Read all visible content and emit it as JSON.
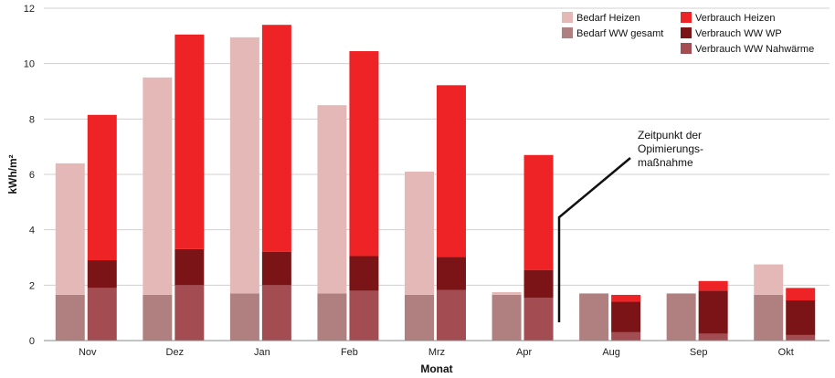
{
  "chart_data": {
    "type": "bar",
    "xlabel": "Monat",
    "ylabel": "kWh/m²",
    "ylim": [
      0,
      12
    ],
    "yticks": [
      0,
      2,
      4,
      6,
      8,
      10,
      12
    ],
    "grid": true,
    "legend_position": "top-right",
    "categories": [
      "Nov",
      "Dez",
      "Jan",
      "Feb",
      "Mrz",
      "Apr",
      "Aug",
      "Sep",
      "Okt"
    ],
    "stacks": [
      {
        "name": "Bedarf",
        "series": [
          {
            "name": "Bedarf WW gesamt",
            "color": "#b07f7f",
            "values": [
              1.65,
              1.65,
              1.7,
              1.7,
              1.65,
              1.65,
              1.7,
              1.7,
              1.65
            ]
          },
          {
            "name": "Bedarf Heizen",
            "color": "#e5b8b8",
            "values": [
              4.75,
              7.85,
              9.25,
              6.8,
              4.45,
              0.1,
              0,
              0,
              1.1
            ]
          }
        ]
      },
      {
        "name": "Verbrauch",
        "series": [
          {
            "name": "Verbrauch WW Nahwärme",
            "color": "#a34d52",
            "values": [
              1.9,
              2.0,
              2.0,
              1.8,
              1.82,
              1.55,
              0.3,
              0.25,
              0.2
            ]
          },
          {
            "name": "Verbrauch WW WP",
            "color": "#7a1416",
            "values": [
              1.0,
              1.3,
              1.2,
              1.25,
              1.2,
              1.0,
              1.1,
              1.55,
              1.25
            ]
          },
          {
            "name": "Verbrauch Heizen",
            "color": "#ee2326",
            "values": [
              5.25,
              7.75,
              8.2,
              7.4,
              6.2,
              4.15,
              0.25,
              0.35,
              0.45
            ]
          }
        ]
      }
    ],
    "legend": {
      "col1": [
        "Bedarf Heizen",
        "Bedarf WW gesamt"
      ],
      "col2": [
        "Verbrauch Heizen",
        "Verbrauch WW WP",
        "Verbrauch WW Nahwärme"
      ]
    },
    "annotation": {
      "lines": [
        "Zeitpunkt der",
        "Opimierungs-",
        "maßnahme"
      ]
    }
  }
}
